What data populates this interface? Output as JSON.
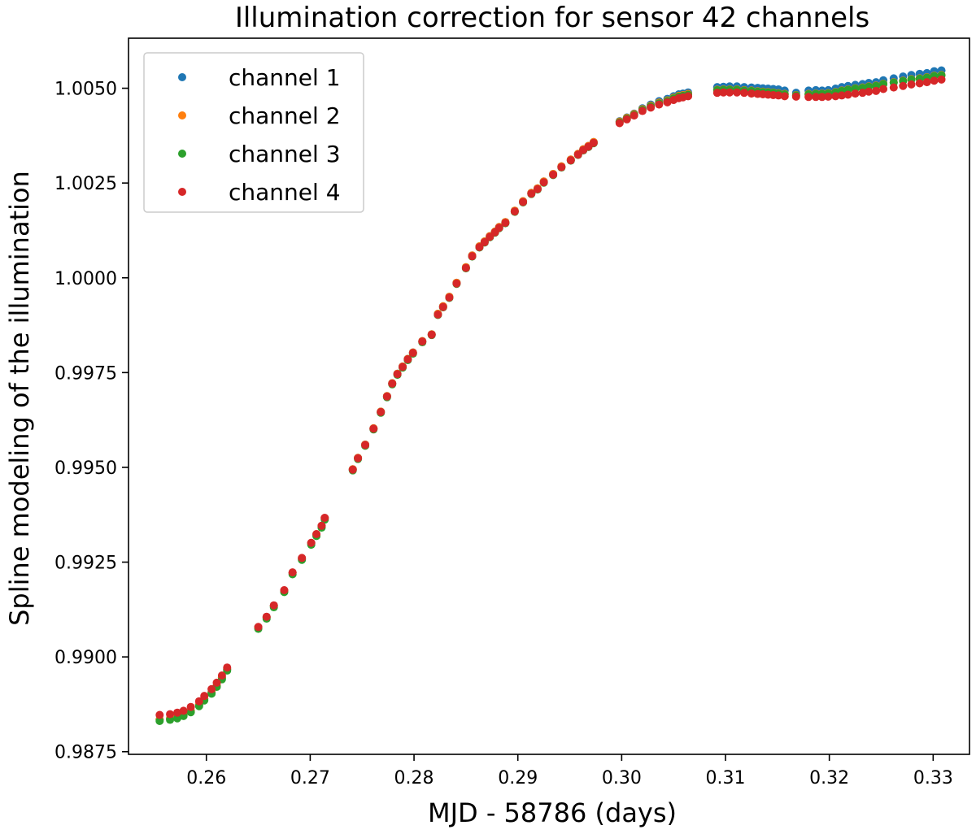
{
  "chart_data": {
    "type": "scatter",
    "title": "Illumination correction for sensor 42 channels",
    "xlabel": "MJD - 58786 (days)",
    "ylabel": "Spline modeling of the illumination",
    "xlim": [
      0.2525,
      0.3335
    ],
    "ylim": [
      0.98743,
      1.00632
    ],
    "x_ticks": [
      0.26,
      0.27,
      0.28,
      0.29,
      0.3,
      0.31,
      0.32,
      0.33
    ],
    "x_tick_labels": [
      "0.26",
      "0.27",
      "0.28",
      "0.29",
      "0.30",
      "0.31",
      "0.32",
      "0.33"
    ],
    "y_ticks": [
      0.9875,
      0.99,
      0.9925,
      0.995,
      0.9975,
      1.0,
      1.0025,
      1.005
    ],
    "y_tick_labels": [
      "0.9875",
      "0.9900",
      "0.9925",
      "0.9950",
      "0.9975",
      "1.0000",
      "1.0025",
      "1.0050"
    ],
    "legend_position": "top-left",
    "grid": false,
    "x": [
      0.2555,
      0.2565,
      0.2572,
      0.2578,
      0.2585,
      0.2593,
      0.2598,
      0.2605,
      0.261,
      0.2615,
      0.262,
      0.265,
      0.2658,
      0.2665,
      0.2675,
      0.2683,
      0.2692,
      0.2701,
      0.2706,
      0.2711,
      0.2714,
      0.2741,
      0.2746,
      0.2753,
      0.2761,
      0.2768,
      0.2774,
      0.2779,
      0.2784,
      0.2789,
      0.2794,
      0.2799,
      0.2808,
      0.2817,
      0.2823,
      0.2828,
      0.2834,
      0.2841,
      0.285,
      0.2856,
      0.2863,
      0.2868,
      0.2873,
      0.2878,
      0.2882,
      0.2888,
      0.2897,
      0.2905,
      0.2913,
      0.2919,
      0.2925,
      0.2934,
      0.2942,
      0.2951,
      0.2958,
      0.2963,
      0.2968,
      0.2973,
      0.2998,
      0.3005,
      0.3012,
      0.302,
      0.3028,
      0.3036,
      0.3044,
      0.305,
      0.3055,
      0.3059,
      0.3064,
      0.3092,
      0.3098,
      0.3104,
      0.3111,
      0.3118,
      0.3125,
      0.3131,
      0.3136,
      0.3141,
      0.3146,
      0.3151,
      0.3157,
      0.3168,
      0.318,
      0.3187,
      0.3193,
      0.3199,
      0.3206,
      0.3212,
      0.3218,
      0.3225,
      0.3232,
      0.3238,
      0.3245,
      0.3252,
      0.3262,
      0.3271,
      0.3279,
      0.3287,
      0.3294,
      0.3301,
      0.3308
    ],
    "series": [
      {
        "name": "channel 1",
        "color": "#1f77b4",
        "values": [
          0.98835,
          0.98838,
          0.98842,
          0.98848,
          0.98858,
          0.98874,
          0.98889,
          0.98907,
          0.98925,
          0.98945,
          0.98968,
          0.99078,
          0.99105,
          0.99135,
          0.99175,
          0.99222,
          0.9926,
          0.993,
          0.99323,
          0.99345,
          0.99366,
          0.99495,
          0.99525,
          0.9956,
          0.99603,
          0.99647,
          0.99688,
          0.99722,
          0.99747,
          0.99766,
          0.99786,
          0.99803,
          0.99833,
          0.99851,
          0.99905,
          0.99925,
          0.9995,
          0.99987,
          1.00028,
          1.00059,
          1.00083,
          1.00096,
          1.0011,
          1.00122,
          1.00134,
          1.00147,
          1.00177,
          1.00202,
          1.00224,
          1.00236,
          1.00254,
          1.00274,
          1.00294,
          1.00312,
          1.00327,
          1.00339,
          1.00348,
          1.00358,
          1.00413,
          1.00423,
          1.00433,
          1.00447,
          1.00457,
          1.00466,
          1.00472,
          1.00479,
          1.00484,
          1.00486,
          1.00489,
          1.00503,
          1.00504,
          1.00505,
          1.00505,
          1.00503,
          1.00502,
          1.00501,
          1.005,
          1.00499,
          1.00498,
          1.00497,
          1.00494,
          1.00488,
          1.00494,
          1.00495,
          1.00494,
          1.00495,
          1.00499,
          1.00503,
          1.00506,
          1.00509,
          1.00511,
          1.00514,
          1.00516,
          1.00521,
          1.00526,
          1.00531,
          1.00535,
          1.00538,
          1.0054,
          1.00545,
          1.00547
        ]
      },
      {
        "name": "channel 2",
        "color": "#ff7f0e",
        "values": [
          0.98835,
          0.98838,
          0.98842,
          0.98848,
          0.98858,
          0.98874,
          0.98889,
          0.98907,
          0.98925,
          0.98945,
          0.98968,
          0.99078,
          0.99105,
          0.99135,
          0.99175,
          0.99222,
          0.9926,
          0.993,
          0.99323,
          0.99345,
          0.99366,
          0.99495,
          0.99525,
          0.9956,
          0.99603,
          0.99647,
          0.99688,
          0.99722,
          0.99747,
          0.99766,
          0.99786,
          0.99803,
          0.99833,
          0.99851,
          0.99905,
          0.99925,
          0.9995,
          0.99987,
          1.00028,
          1.00059,
          1.00083,
          1.00096,
          1.0011,
          1.00122,
          1.00134,
          1.00147,
          1.00177,
          1.00202,
          1.00224,
          1.00236,
          1.00254,
          1.00274,
          1.00294,
          1.00312,
          1.00327,
          1.00339,
          1.00348,
          1.00358,
          1.00412,
          1.00422,
          1.00432,
          1.00445,
          1.00454,
          1.00462,
          1.00468,
          1.00475,
          1.0048,
          1.00482,
          1.00485,
          1.00496,
          1.00497,
          1.00497,
          1.00497,
          1.00495,
          1.00494,
          1.00492,
          1.00491,
          1.0049,
          1.00489,
          1.00487,
          1.00485,
          1.00482,
          1.00485,
          1.00486,
          1.00486,
          1.00487,
          1.0049,
          1.00494,
          1.00497,
          1.005,
          1.00502,
          1.00505,
          1.00507,
          1.00512,
          1.00516,
          1.0052,
          1.00524,
          1.00526,
          1.00529,
          1.00533,
          1.00535
        ]
      },
      {
        "name": "channel 3",
        "color": "#2ca02c",
        "values": [
          0.98831,
          0.98834,
          0.98838,
          0.98844,
          0.98854,
          0.9887,
          0.98885,
          0.98903,
          0.98921,
          0.98941,
          0.98964,
          0.99074,
          0.99101,
          0.99131,
          0.99171,
          0.99218,
          0.99256,
          0.99296,
          0.99319,
          0.99341,
          0.99362,
          0.99492,
          0.99522,
          0.99557,
          0.996,
          0.99644,
          0.99685,
          0.99719,
          0.99744,
          0.99763,
          0.99783,
          0.998,
          0.9983,
          0.99849,
          0.99902,
          0.99922,
          0.99947,
          0.99984,
          1.00025,
          1.00056,
          1.0008,
          1.00093,
          1.00107,
          1.00119,
          1.00131,
          1.00144,
          1.00174,
          1.00199,
          1.00221,
          1.00233,
          1.00251,
          1.00271,
          1.00291,
          1.00309,
          1.00324,
          1.00336,
          1.00345,
          1.00355,
          1.0041,
          1.0042,
          1.0043,
          1.00443,
          1.00452,
          1.0046,
          1.00466,
          1.00473,
          1.00478,
          1.0048,
          1.00483,
          1.00495,
          1.00496,
          1.00496,
          1.00496,
          1.00494,
          1.00493,
          1.00491,
          1.0049,
          1.00489,
          1.00488,
          1.00486,
          1.00484,
          1.00481,
          1.00484,
          1.00485,
          1.00485,
          1.00486,
          1.00489,
          1.00493,
          1.00496,
          1.00499,
          1.00501,
          1.00504,
          1.00506,
          1.00511,
          1.00515,
          1.00519,
          1.00523,
          1.00525,
          1.00528,
          1.00532,
          1.00534
        ]
      },
      {
        "name": "channel 4",
        "color": "#d62728",
        "values": [
          0.98847,
          0.98849,
          0.98853,
          0.98858,
          0.98868,
          0.98883,
          0.98897,
          0.98915,
          0.98932,
          0.98951,
          0.98972,
          0.99079,
          0.99106,
          0.99136,
          0.99176,
          0.99223,
          0.99261,
          0.99301,
          0.99324,
          0.99346,
          0.99367,
          0.99494,
          0.99524,
          0.99559,
          0.99602,
          0.99646,
          0.99687,
          0.99721,
          0.99746,
          0.99765,
          0.99785,
          0.99802,
          0.99832,
          0.9985,
          0.99903,
          0.99923,
          0.99948,
          0.99985,
          1.00026,
          1.00057,
          1.00081,
          1.00094,
          1.00108,
          1.0012,
          1.00132,
          1.00145,
          1.00175,
          1.002,
          1.00222,
          1.00234,
          1.00252,
          1.00272,
          1.00292,
          1.0031,
          1.00325,
          1.00337,
          1.00346,
          1.00356,
          1.00408,
          1.00418,
          1.00428,
          1.0044,
          1.00449,
          1.00457,
          1.00463,
          1.00469,
          1.00474,
          1.00476,
          1.00479,
          1.00488,
          1.00489,
          1.00489,
          1.00489,
          1.00488,
          1.00486,
          1.00485,
          1.00484,
          1.00483,
          1.00482,
          1.00481,
          1.00479,
          1.00478,
          1.00477,
          1.00477,
          1.00477,
          1.00478,
          1.00479,
          1.00481,
          1.00483,
          1.00486,
          1.00488,
          1.00491,
          1.00493,
          1.00498,
          1.00502,
          1.00506,
          1.0051,
          1.00513,
          1.00516,
          1.0052,
          1.00523
        ]
      }
    ]
  }
}
